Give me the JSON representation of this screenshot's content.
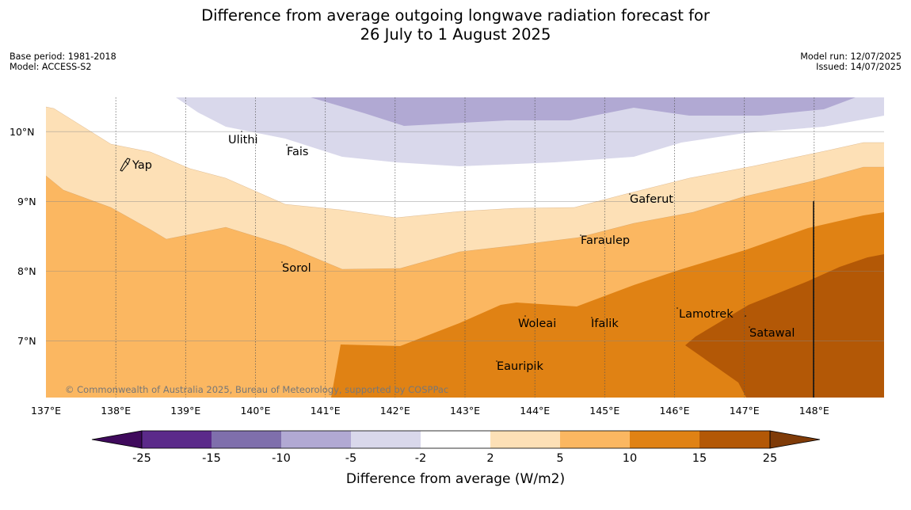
{
  "title_line1": "Difference from average outgoing longwave radiation forecast for",
  "title_line2": "26 July to 1 August 2025",
  "base_period": "Base period: 1981-2018",
  "model": "Model: ACCESS-S2",
  "model_run": "Model run: 12/07/2025",
  "issued": "Issued: 14/07/2025",
  "copyright": "© Commonwealth of Australia 2025, Bureau of Meteorology, supported by COSPPac",
  "colorbar_title": "Difference from average (W/m2)",
  "map": {
    "lon_range": [
      137,
      149
    ],
    "lat_range": [
      6.2,
      10.5
    ],
    "lon_ticks": [
      "137°E",
      "138°E",
      "139°E",
      "140°E",
      "141°E",
      "142°E",
      "143°E",
      "144°E",
      "145°E",
      "146°E",
      "147°E",
      "148°E"
    ],
    "lat_ticks": [
      "10°N",
      "9°N",
      "8°N",
      "7°N"
    ],
    "places": [
      {
        "name": "Yap",
        "lon": 138.2,
        "lat": 9.52
      },
      {
        "name": "Ulithi",
        "lon": 139.65,
        "lat": 9.9
      },
      {
        "name": "Fais",
        "lon": 140.4,
        "lat": 9.75
      },
      {
        "name": "Gaferut",
        "lon": 145.35,
        "lat": 9.05
      },
      {
        "name": "Faraulep",
        "lon": 144.6,
        "lat": 8.45
      },
      {
        "name": "Sorol",
        "lon": 140.4,
        "lat": 8.07
      },
      {
        "name": "Woleai",
        "lon": 143.9,
        "lat": 7.3
      },
      {
        "name": "Ifalik",
        "lon": 144.75,
        "lat": 7.3
      },
      {
        "name": "Lamotrek",
        "lon": 146.05,
        "lat": 7.4
      },
      {
        "name": "Satawal",
        "lon": 146.95,
        "lat": 7.15
      },
      {
        "name": "Eauripik",
        "lon": 143.2,
        "lat": 6.68
      }
    ]
  },
  "colorbar": {
    "ticks": [
      "-25",
      "-15",
      "-10",
      "-5",
      "-2",
      "2",
      "5",
      "10",
      "15",
      "25"
    ],
    "colors": [
      "#3f0a5c",
      "#5b2a8a",
      "#7f6fac",
      "#b1a9d3",
      "#d9d8eb",
      "#ffffff",
      "#fde0b6",
      "#fbb761",
      "#e08214",
      "#b35806",
      "#7f3b08"
    ]
  }
}
